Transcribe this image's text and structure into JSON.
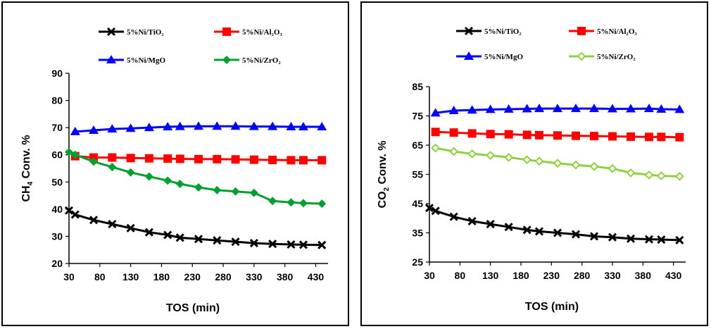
{
  "chart_data": [
    {
      "type": "line",
      "xlabel": "TOS (min)",
      "ylabel": "CH4 Conv. %",
      "ylabel_parts": {
        "pre": "CH",
        "sub": "4",
        "post": " Conv. %"
      },
      "xlim": [
        30,
        450
      ],
      "ylim": [
        20,
        90
      ],
      "xticks": [
        30,
        80,
        130,
        180,
        230,
        280,
        330,
        380,
        430
      ],
      "yticks": [
        20,
        30,
        40,
        50,
        60,
        70,
        80,
        90
      ],
      "grid": false,
      "legend": "top",
      "series": [
        {
          "name": "5%Ni/TiO₂",
          "color": "#000000",
          "marker": "x",
          "x": [
            30,
            40,
            70,
            100,
            130,
            160,
            190,
            210,
            240,
            270,
            300,
            330,
            360,
            390,
            410,
            440
          ],
          "y": [
            39.5,
            38,
            36,
            34.5,
            33,
            31.5,
            30.5,
            29.5,
            29,
            28.5,
            28,
            27.5,
            27.2,
            27,
            26.9,
            26.8
          ]
        },
        {
          "name": "5%Ni/Al₂O₃",
          "color": "#ff0000",
          "marker": "square",
          "x": [
            40,
            70,
            100,
            130,
            160,
            190,
            210,
            240,
            270,
            300,
            330,
            360,
            390,
            410,
            440
          ],
          "y": [
            59.5,
            59,
            59,
            58.8,
            58.7,
            58.6,
            58.5,
            58.4,
            58.4,
            58.3,
            58.2,
            58.1,
            58,
            58,
            58
          ]
        },
        {
          "name": "5%Ni/MgO",
          "color": "#0000ff",
          "marker": "triangle",
          "x": [
            40,
            70,
            100,
            130,
            160,
            190,
            210,
            240,
            270,
            300,
            330,
            360,
            390,
            410,
            440
          ],
          "y": [
            68.5,
            69,
            69.5,
            69.7,
            70,
            70.3,
            70.4,
            70.5,
            70.5,
            70.5,
            70.4,
            70.4,
            70.3,
            70.3,
            70.3
          ]
        },
        {
          "name": "5%Ni/ZrO₂",
          "color": "#00a030",
          "marker": "diamond",
          "x": [
            30,
            40,
            70,
            100,
            130,
            160,
            190,
            210,
            240,
            270,
            300,
            330,
            360,
            390,
            410,
            440
          ],
          "y": [
            61,
            60,
            57.5,
            55.5,
            53.5,
            52,
            50.5,
            49.3,
            48,
            47,
            46.5,
            46,
            43,
            42.5,
            42.2,
            42
          ]
        }
      ]
    },
    {
      "type": "line",
      "xlabel": "TOS (min)",
      "ylabel": "CO2 Conv. %",
      "ylabel_parts": {
        "pre": "CO",
        "sub": "2",
        "post": " Conv. %"
      },
      "xlim": [
        30,
        450
      ],
      "ylim": [
        25,
        85
      ],
      "xticks": [
        30,
        80,
        130,
        180,
        230,
        280,
        330,
        380,
        430
      ],
      "yticks": [
        25,
        35,
        45,
        55,
        65,
        75,
        85
      ],
      "grid": false,
      "legend": "top",
      "series": [
        {
          "name": "5%Ni/TiO₂",
          "color": "#000000",
          "marker": "x",
          "x": [
            30,
            40,
            70,
            100,
            130,
            160,
            190,
            210,
            240,
            270,
            300,
            330,
            360,
            390,
            410,
            440
          ],
          "y": [
            43.5,
            42.5,
            40.5,
            39,
            38,
            37,
            36,
            35.5,
            35,
            34.5,
            33.8,
            33.5,
            33,
            32.8,
            32.7,
            32.5
          ]
        },
        {
          "name": "5%Ni/Al₂O₃",
          "color": "#ff0000",
          "marker": "square",
          "x": [
            40,
            70,
            100,
            130,
            160,
            190,
            210,
            240,
            270,
            300,
            330,
            360,
            390,
            410,
            440
          ],
          "y": [
            69.5,
            69.3,
            69,
            68.8,
            68.7,
            68.5,
            68.4,
            68.3,
            68.2,
            68.1,
            68,
            67.9,
            67.8,
            67.8,
            67.7
          ]
        },
        {
          "name": "5%Ni/MgO",
          "color": "#0000ff",
          "marker": "triangle",
          "x": [
            40,
            70,
            100,
            130,
            160,
            190,
            210,
            240,
            270,
            300,
            330,
            360,
            390,
            410,
            440
          ],
          "y": [
            76,
            76.8,
            77,
            77.2,
            77.3,
            77.4,
            77.5,
            77.5,
            77.5,
            77.5,
            77.4,
            77.4,
            77.5,
            77.3,
            77.2
          ]
        },
        {
          "name": "5%Ni/ZrO₂",
          "color": "#90d040",
          "marker": "diamond-open",
          "x": [
            40,
            70,
            100,
            130,
            160,
            190,
            210,
            240,
            270,
            300,
            330,
            360,
            390,
            410,
            440
          ],
          "y": [
            64,
            62.8,
            62,
            61.5,
            60.8,
            60,
            59.5,
            58.8,
            58.2,
            57.7,
            57,
            55.5,
            54.8,
            54.5,
            54.3
          ]
        }
      ]
    }
  ]
}
